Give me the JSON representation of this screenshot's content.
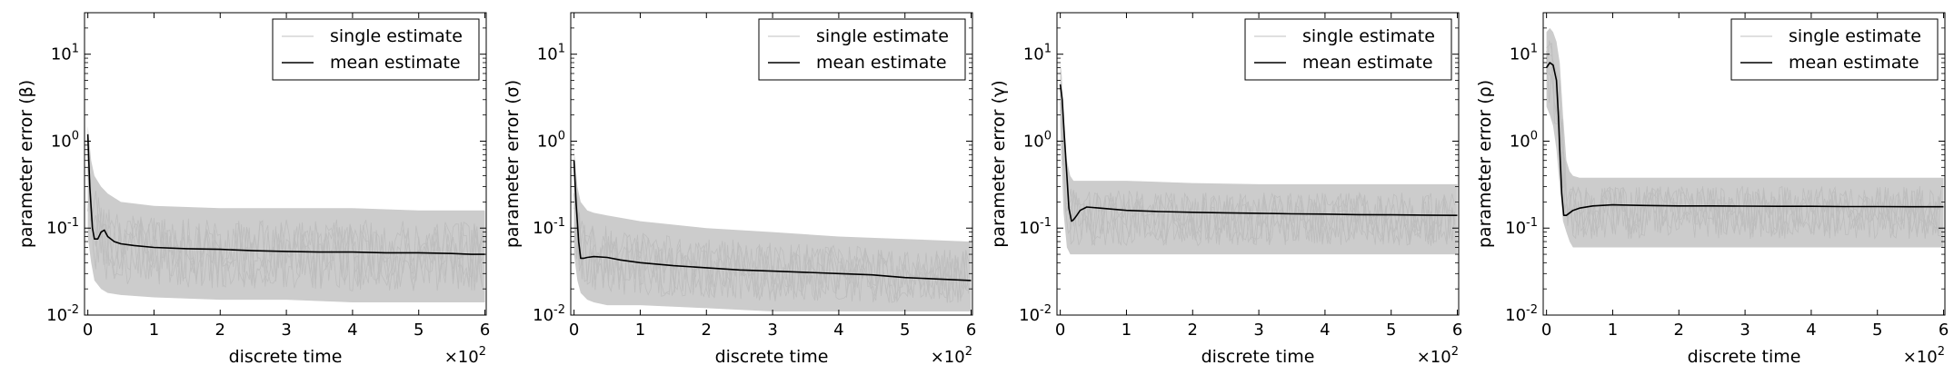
{
  "chart_data": [
    {
      "type": "line",
      "xlabel": "discrete time",
      "ylabel": "parameter error (β)",
      "x_multiplier_label": "×10",
      "x_multiplier_exp": "2",
      "xlim": [
        -0.05,
        6.02
      ],
      "ylim": [
        0.01,
        30
      ],
      "yscale": "log",
      "x_ticks": [
        0,
        1,
        2,
        3,
        4,
        5,
        6
      ],
      "y_ticks": [
        {
          "value": 0.01,
          "base": "10",
          "exp": "-2"
        },
        {
          "value": 0.1,
          "base": "10",
          "exp": "-1"
        },
        {
          "value": 1,
          "base": "10",
          "exp": "0"
        },
        {
          "value": 10,
          "base": "10",
          "exp": "1"
        }
      ],
      "legend": {
        "position": "top-right",
        "entries": [
          "single estimate",
          "mean estimate"
        ]
      },
      "series": [
        {
          "name": "single estimate",
          "color": "#cccccc",
          "band": {
            "x": [
              0,
              0.05,
              0.1,
              0.2,
              0.3,
              0.5,
              1,
              2,
              3,
              4,
              5,
              6
            ],
            "low": [
              0.08,
              0.04,
              0.025,
              0.02,
              0.018,
              0.017,
              0.016,
              0.015,
              0.015,
              0.014,
              0.014,
              0.014
            ],
            "high": [
              1.5,
              0.6,
              0.4,
              0.3,
              0.25,
              0.2,
              0.18,
              0.17,
              0.17,
              0.17,
              0.16,
              0.16
            ]
          }
        },
        {
          "name": "mean estimate",
          "color": "#000000",
          "x": [
            0,
            0.03,
            0.07,
            0.1,
            0.15,
            0.2,
            0.25,
            0.3,
            0.4,
            0.5,
            0.7,
            1,
            1.5,
            2,
            2.5,
            3,
            3.5,
            4,
            4.5,
            5,
            5.5,
            5.8,
            6
          ],
          "y": [
            1.2,
            0.3,
            0.1,
            0.075,
            0.075,
            0.09,
            0.095,
            0.08,
            0.07,
            0.066,
            0.063,
            0.06,
            0.058,
            0.057,
            0.055,
            0.054,
            0.053,
            0.053,
            0.052,
            0.052,
            0.051,
            0.05,
            0.05
          ]
        }
      ]
    },
    {
      "type": "line",
      "xlabel": "discrete time",
      "ylabel": "parameter error (σ)",
      "x_multiplier_label": "×10",
      "x_multiplier_exp": "2",
      "xlim": [
        -0.05,
        6.02
      ],
      "ylim": [
        0.01,
        30
      ],
      "yscale": "log",
      "x_ticks": [
        0,
        1,
        2,
        3,
        4,
        5,
        6
      ],
      "y_ticks": [
        {
          "value": 0.01,
          "base": "10",
          "exp": "-2"
        },
        {
          "value": 0.1,
          "base": "10",
          "exp": "-1"
        },
        {
          "value": 1,
          "base": "10",
          "exp": "0"
        },
        {
          "value": 10,
          "base": "10",
          "exp": "1"
        }
      ],
      "legend": {
        "position": "top-right",
        "entries": [
          "single estimate",
          "mean estimate"
        ]
      },
      "series": [
        {
          "name": "single estimate",
          "color": "#cccccc",
          "band": {
            "x": [
              0,
              0.05,
              0.1,
              0.2,
              0.3,
              0.5,
              1,
              2,
              3,
              4,
              5,
              6
            ],
            "low": [
              0.05,
              0.025,
              0.018,
              0.015,
              0.014,
              0.013,
              0.013,
              0.012,
              0.011,
              0.011,
              0.011,
              0.011
            ],
            "high": [
              0.8,
              0.3,
              0.2,
              0.16,
              0.15,
              0.14,
              0.12,
              0.1,
              0.09,
              0.08,
              0.075,
              0.07
            ]
          }
        },
        {
          "name": "mean estimate",
          "color": "#000000",
          "x": [
            0,
            0.03,
            0.07,
            0.1,
            0.15,
            0.2,
            0.3,
            0.5,
            0.7,
            1,
            1.5,
            2,
            2.5,
            3,
            3.5,
            4,
            4.5,
            5,
            5.5,
            6
          ],
          "y": [
            0.6,
            0.2,
            0.07,
            0.045,
            0.045,
            0.046,
            0.047,
            0.046,
            0.043,
            0.04,
            0.037,
            0.035,
            0.033,
            0.032,
            0.031,
            0.03,
            0.029,
            0.027,
            0.026,
            0.025
          ]
        }
      ]
    },
    {
      "type": "line",
      "xlabel": "discrete time",
      "ylabel": "parameter error (γ)",
      "x_multiplier_label": "×10",
      "x_multiplier_exp": "2",
      "xlim": [
        -0.05,
        6.02
      ],
      "ylim": [
        0.01,
        30
      ],
      "yscale": "log",
      "x_ticks": [
        0,
        1,
        2,
        3,
        4,
        5,
        6
      ],
      "y_ticks": [
        {
          "value": 0.01,
          "base": "10",
          "exp": "-2"
        },
        {
          "value": 0.1,
          "base": "10",
          "exp": "-1"
        },
        {
          "value": 1,
          "base": "10",
          "exp": "0"
        },
        {
          "value": 10,
          "base": "10",
          "exp": "1"
        }
      ],
      "legend": {
        "position": "top-right",
        "entries": [
          "single estimate",
          "mean estimate"
        ]
      },
      "series": [
        {
          "name": "single estimate",
          "color": "#cccccc",
          "band": {
            "x": [
              0,
              0.02,
              0.05,
              0.1,
              0.15,
              0.2,
              0.3,
              0.5,
              1,
              2,
              3,
              4,
              5,
              6
            ],
            "low": [
              1.5,
              0.6,
              0.15,
              0.06,
              0.05,
              0.05,
              0.05,
              0.05,
              0.05,
              0.05,
              0.05,
              0.05,
              0.05,
              0.05
            ],
            "high": [
              8,
              6,
              2,
              0.6,
              0.4,
              0.35,
              0.35,
              0.35,
              0.35,
              0.33,
              0.32,
              0.32,
              0.32,
              0.32
            ]
          }
        },
        {
          "name": "mean estimate",
          "color": "#000000",
          "x": [
            0,
            0.03,
            0.06,
            0.1,
            0.13,
            0.17,
            0.2,
            0.25,
            0.3,
            0.4,
            0.6,
            1,
            1.5,
            2,
            2.5,
            3,
            3.5,
            4,
            4.5,
            5,
            5.5,
            6
          ],
          "y": [
            4.5,
            3,
            1.2,
            0.4,
            0.17,
            0.12,
            0.125,
            0.14,
            0.16,
            0.175,
            0.17,
            0.16,
            0.155,
            0.152,
            0.15,
            0.148,
            0.146,
            0.145,
            0.143,
            0.142,
            0.141,
            0.14
          ]
        }
      ]
    },
    {
      "type": "line",
      "xlabel": "discrete time",
      "ylabel": "parameter error (ρ)",
      "x_multiplier_label": "×10",
      "x_multiplier_exp": "2",
      "xlim": [
        -0.05,
        6.02
      ],
      "ylim": [
        0.01,
        30
      ],
      "yscale": "log",
      "x_ticks": [
        0,
        1,
        2,
        3,
        4,
        5,
        6
      ],
      "y_ticks": [
        {
          "value": 0.01,
          "base": "10",
          "exp": "-2"
        },
        {
          "value": 0.1,
          "base": "10",
          "exp": "-1"
        },
        {
          "value": 1,
          "base": "10",
          "exp": "0"
        },
        {
          "value": 10,
          "base": "10",
          "exp": "1"
        }
      ],
      "legend": {
        "position": "top-right",
        "entries": [
          "single estimate",
          "mean estimate"
        ]
      },
      "series": [
        {
          "name": "single estimate",
          "color": "#cccccc",
          "band": {
            "x": [
              0,
              0.05,
              0.1,
              0.15,
              0.2,
              0.25,
              0.3,
              0.35,
              0.4,
              0.5,
              1,
              2,
              3,
              4,
              5,
              6
            ],
            "low": [
              2.5,
              2,
              1.5,
              0.8,
              0.3,
              0.12,
              0.09,
              0.07,
              0.06,
              0.06,
              0.06,
              0.06,
              0.06,
              0.06,
              0.06,
              0.06
            ],
            "high": [
              18,
              20,
              18,
              14,
              8,
              2,
              0.6,
              0.45,
              0.4,
              0.38,
              0.38,
              0.38,
              0.38,
              0.38,
              0.38,
              0.38
            ]
          }
        },
        {
          "name": "mean estimate",
          "color": "#000000",
          "x": [
            0,
            0.05,
            0.1,
            0.15,
            0.18,
            0.2,
            0.23,
            0.26,
            0.3,
            0.4,
            0.5,
            0.7,
            1,
            1.5,
            2,
            2.5,
            3,
            3.5,
            4,
            4.5,
            5,
            5.5,
            6
          ],
          "y": [
            7,
            8,
            7.5,
            5,
            2,
            0.8,
            0.25,
            0.14,
            0.14,
            0.16,
            0.17,
            0.18,
            0.185,
            0.182,
            0.18,
            0.18,
            0.179,
            0.178,
            0.178,
            0.177,
            0.177,
            0.176,
            0.176
          ]
        }
      ]
    }
  ]
}
